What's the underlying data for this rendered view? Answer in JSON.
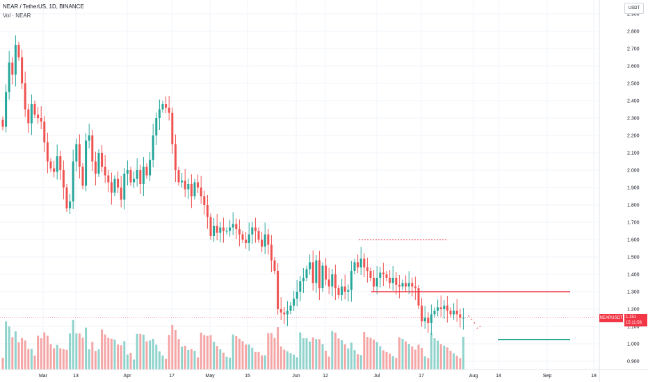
{
  "legend": {
    "symbol_line": "NEAR / TetherUS, 1D, BINANCE",
    "volume_line": "Vol · NEAR"
  },
  "price_scale": {
    "currency": "USDT",
    "ticks": [
      "2.900",
      "2.800",
      "2.700",
      "2.600",
      "2.500",
      "2.400",
      "2.300",
      "2.200",
      "2.100",
      "2.000",
      "1.900",
      "1.800",
      "1.700",
      "1.600",
      "1.500",
      "1.400",
      "1.300",
      "1.200",
      "1.100",
      "1.000",
      "0.900"
    ]
  },
  "time_scale": {
    "labels": [
      "Mar",
      "13",
      "Apr",
      "17",
      "May",
      "15",
      "Jun",
      "12",
      "Jul",
      "17",
      "Aug",
      "14",
      "Sep",
      "18"
    ]
  },
  "last_price": {
    "ticker": "NEARUSDT",
    "price": "1.151",
    "countdown": "15:11:58"
  },
  "colors": {
    "up": "#26a69a",
    "down": "#ef5350",
    "up_volume": "#8fd3cc",
    "down_volume": "#f4a6a6",
    "resistance_line": "#f23645",
    "support_line": "#089981",
    "grid": "#f0f3fa"
  },
  "chart_data": {
    "type": "candlestick",
    "symbol": "NEAR / TetherUS",
    "interval": "1D",
    "exchange": "BINANCE",
    "y_axis": {
      "min": 0.88,
      "max": 2.92,
      "unit": "USDT"
    },
    "x_axis_labels": [
      "Mar",
      "13",
      "Apr",
      "17",
      "May",
      "15",
      "Jun",
      "12",
      "Jul",
      "17",
      "Aug",
      "14",
      "Sep",
      "18"
    ],
    "candle_closes": [
      2.25,
      2.45,
      2.62,
      2.55,
      2.72,
      2.65,
      2.5,
      2.35,
      2.27,
      2.38,
      2.32,
      2.3,
      2.28,
      2.16,
      2.05,
      2.01,
      1.99,
      2.08,
      2.0,
      1.9,
      1.78,
      1.82,
      2.05,
      2.15,
      2.02,
      1.91,
      2.17,
      2.2,
      2.05,
      1.98,
      2.1,
      2.02,
      1.97,
      1.93,
      1.87,
      1.95,
      1.9,
      1.83,
      1.98,
      2.0,
      1.93,
      1.95,
      2.0,
      1.92,
      2.02,
      1.97,
      2.06,
      2.2,
      2.3,
      2.35,
      2.38,
      2.36,
      2.33,
      2.15,
      2.0,
      1.93,
      1.94,
      1.89,
      1.92,
      1.85,
      1.93,
      1.9,
      1.85,
      1.8,
      1.73,
      1.62,
      1.68,
      1.64,
      1.67,
      1.65,
      1.65,
      1.67,
      1.69,
      1.66,
      1.63,
      1.6,
      1.58,
      1.63,
      1.67,
      1.65,
      1.6,
      1.56,
      1.63,
      1.57,
      1.48,
      1.42,
      1.2,
      1.18,
      1.17,
      1.19,
      1.22,
      1.26,
      1.3,
      1.36,
      1.38,
      1.43,
      1.47,
      1.35,
      1.48,
      1.32,
      1.45,
      1.37,
      1.33,
      1.4,
      1.32,
      1.28,
      1.33,
      1.3,
      1.31,
      1.42,
      1.47,
      1.44,
      1.49,
      1.44,
      1.42,
      1.38,
      1.33,
      1.38,
      1.41,
      1.4,
      1.38,
      1.35,
      1.38,
      1.34,
      1.33,
      1.35,
      1.33,
      1.35,
      1.33,
      1.32,
      1.22,
      1.13,
      1.15,
      1.12,
      1.17,
      1.19,
      1.21,
      1.2,
      1.22,
      1.19,
      1.17,
      1.19,
      1.17,
      1.15,
      1.15
    ],
    "resistance_level": 1.3,
    "support_level": 1.025,
    "local_top_level": 1.6,
    "last_close": 1.151
  }
}
